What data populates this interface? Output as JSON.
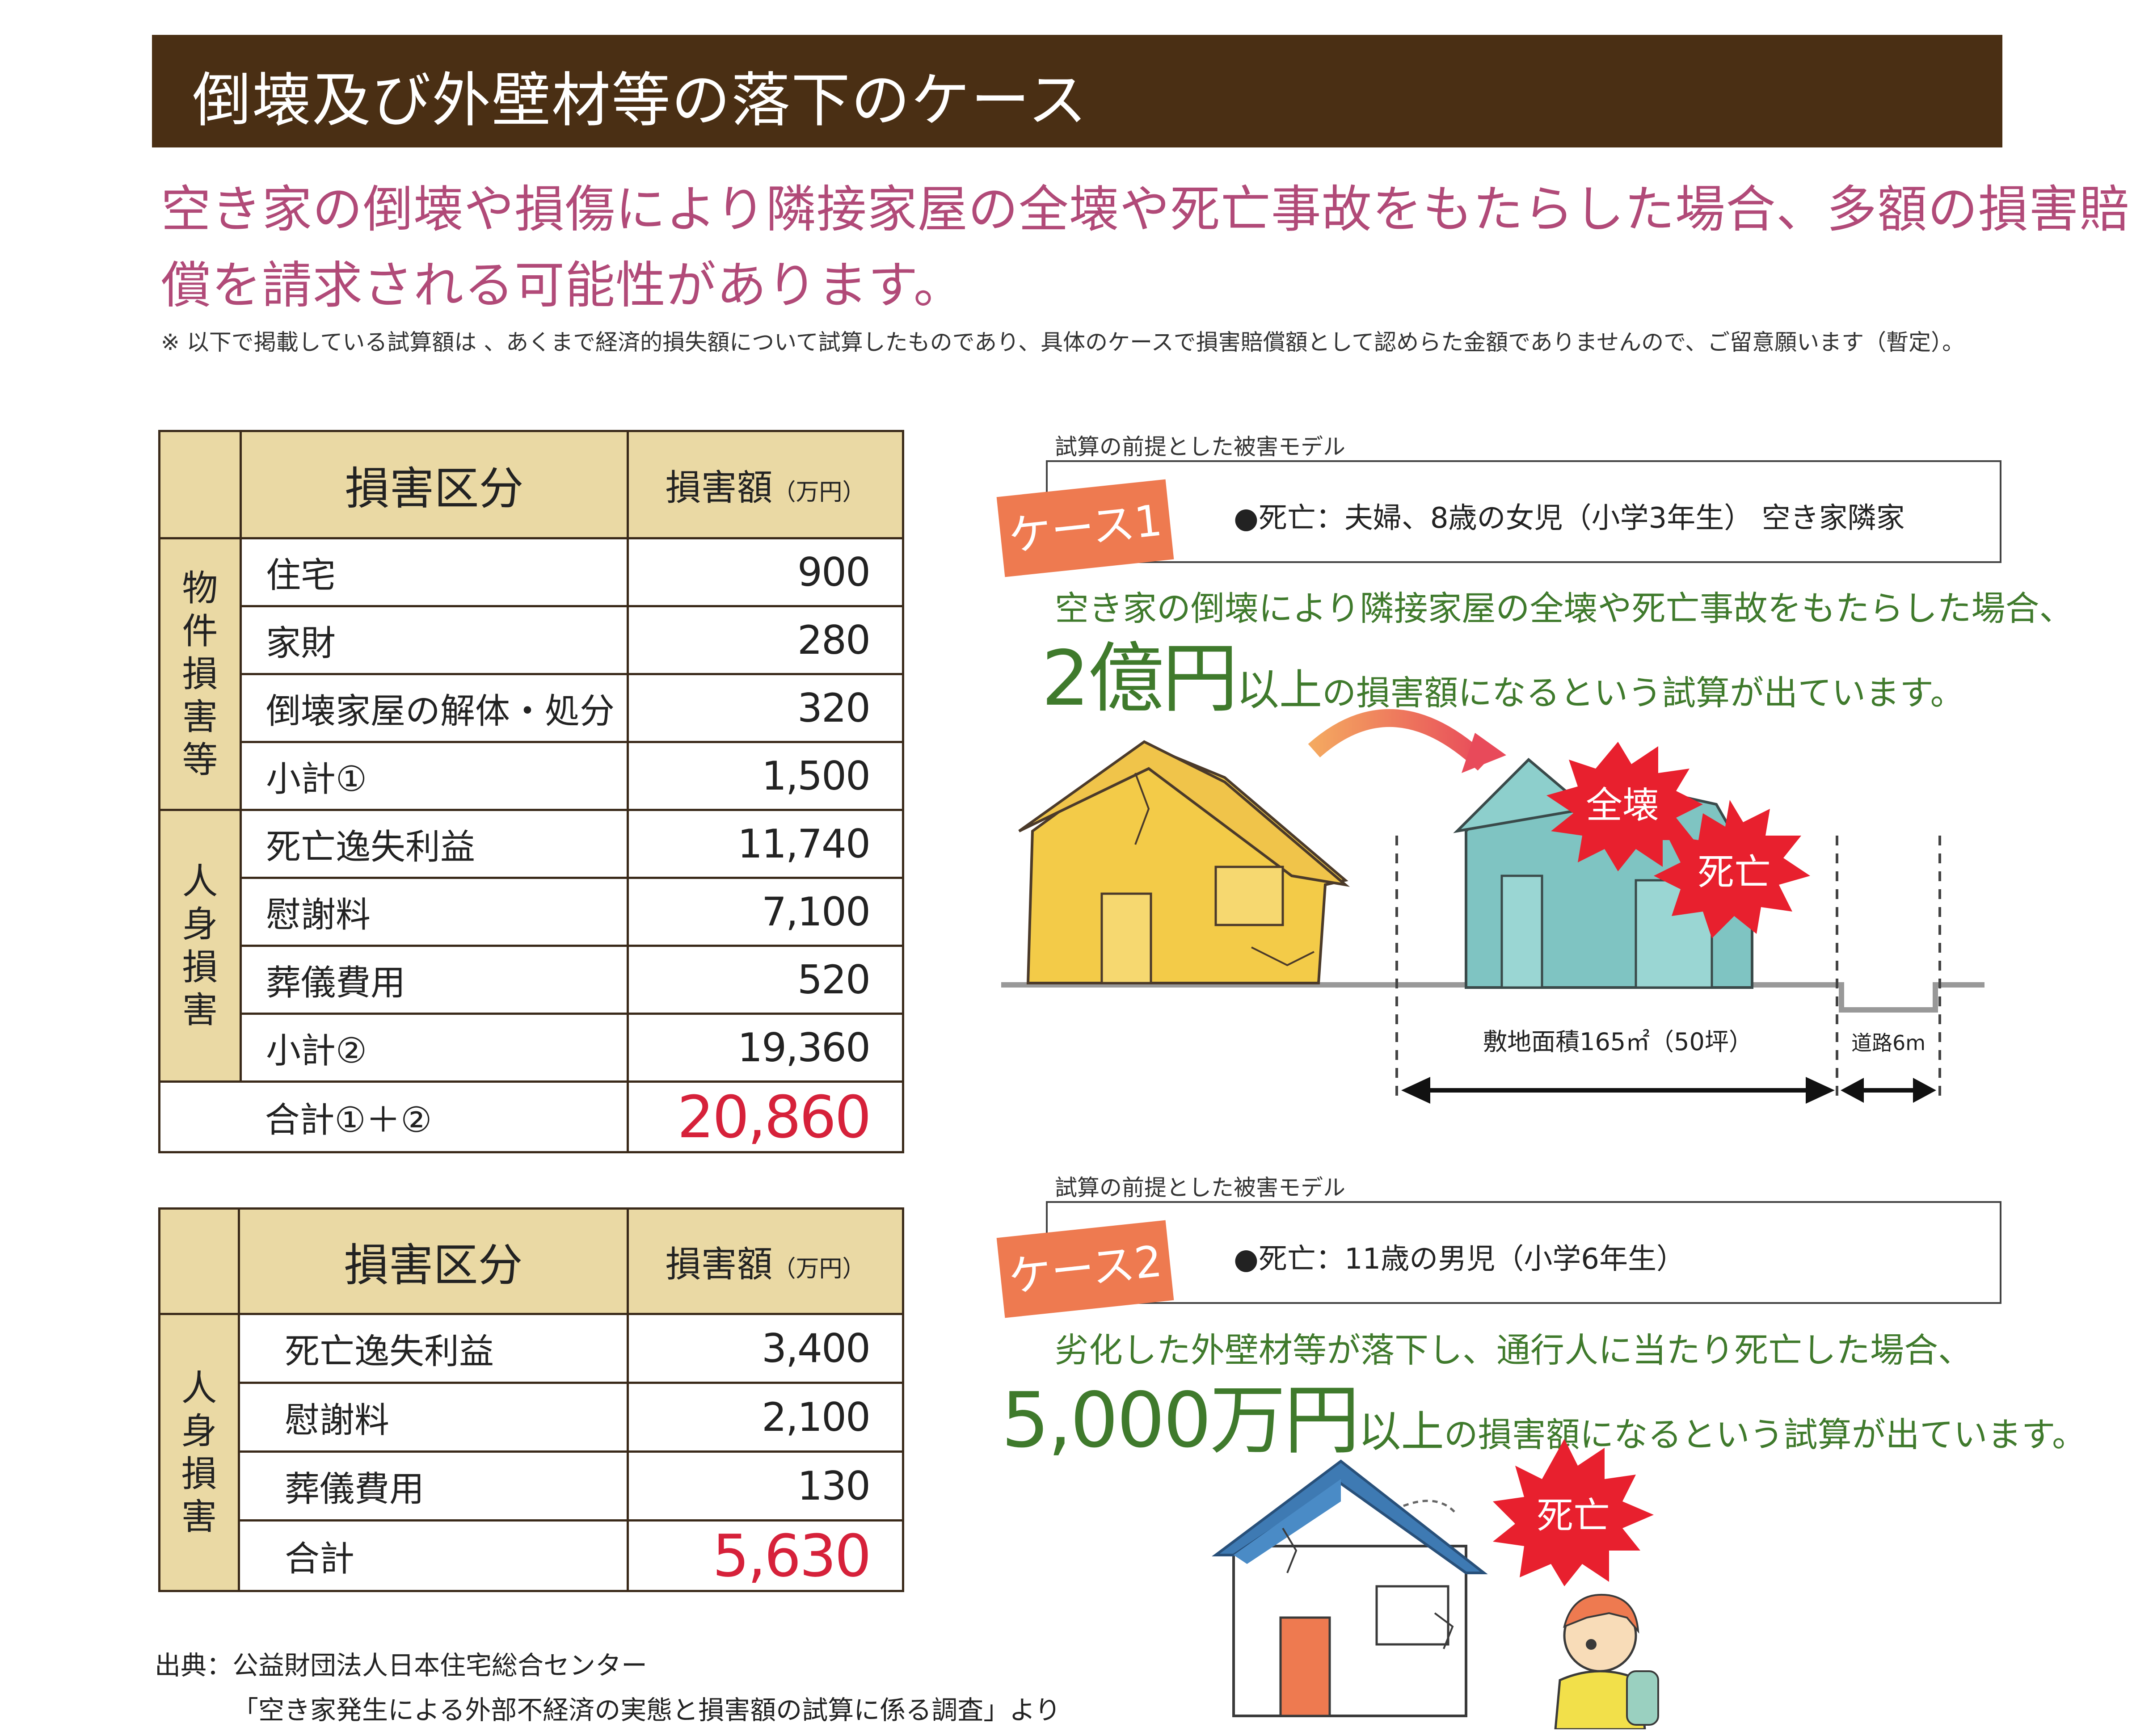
{
  "header": {
    "title": "倒壊及び外壁材等の落下のケース"
  },
  "lead": {
    "line1": "空き家の倒壊や損傷により隣接家屋の全壊や死亡事故をもたらした場合、多額の損害賠",
    "line2": "償を請求される可能性があります。"
  },
  "note": "※ 以下で掲載している試算額は 、あくまで経済的損失額について試算したものであり、具体のケースで損害賠償額として認めらた金額でありませんので、ご留意願います（暫定）。",
  "table1": {
    "h_category": "損害区分",
    "h_amount": "損害額",
    "h_unit": "（万円）",
    "cat_property": "物件損害等",
    "cat_personal": "人身損害",
    "rows": [
      {
        "label": "住宅",
        "value": "900"
      },
      {
        "label": "家財",
        "value": "280"
      },
      {
        "label": "倒壊家屋の解体・処分",
        "value": "320"
      },
      {
        "label": "小計①",
        "value": "1,500"
      },
      {
        "label": "死亡逸失利益",
        "value": "11,740"
      },
      {
        "label": "慰謝料",
        "value": "7,100"
      },
      {
        "label": "葬儀費用",
        "value": "520"
      },
      {
        "label": "小計②",
        "value": "19,360"
      }
    ],
    "total_label": "合計①＋②",
    "total_value": "20,860"
  },
  "table2": {
    "h_category": "損害区分",
    "h_amount": "損害額",
    "h_unit": "（万円）",
    "cat_personal": "人身損害",
    "rows": [
      {
        "label": "死亡逸失利益",
        "value": "3,400"
      },
      {
        "label": "慰謝料",
        "value": "2,100"
      },
      {
        "label": "葬儀費用",
        "value": "130"
      }
    ],
    "total_label": "合計",
    "total_value": "5,630"
  },
  "case1": {
    "model_label": "試算の前提とした被害モデル",
    "tag": "ケース1",
    "victims": "●死亡：夫婦、8歳の女児（小学3年生） 空き家隣家",
    "desc": "空き家の倒壊により隣接家屋の全壊や死亡事故をもたらした場合、",
    "amount": "2億円",
    "suffix_a": "以上",
    "suffix_b": "の損害額になるという試算が出ています。",
    "burst1": "全壊",
    "burst2": "死亡",
    "site_area": "敷地面積165㎡（50坪）",
    "road": "道路6m"
  },
  "case2": {
    "model_label": "試算の前提とした被害モデル",
    "tag": "ケース2",
    "victims": "●死亡：11歳の男児（小学6年生）",
    "desc": "劣化した外壁材等が落下し、通行人に当たり死亡した場合、",
    "amount": "5,000万円",
    "suffix_a": "以上",
    "suffix_b": "の損害額になるという試算が出ています。",
    "burst": "死亡"
  },
  "source": {
    "line1": "出典：公益財団法人日本住宅総合センター",
    "line2": "「空き家発生による外部不経済の実態と損害額の試算に係る調査」より"
  },
  "colors": {
    "header_bg": "#4a2f14",
    "lead_text": "#b14a78",
    "table_header": "#ead9a4",
    "total_red": "#d6213a",
    "case_green": "#3f7a2c",
    "tag_orange": "#ee7a50",
    "burst_red": "#e8202e"
  }
}
